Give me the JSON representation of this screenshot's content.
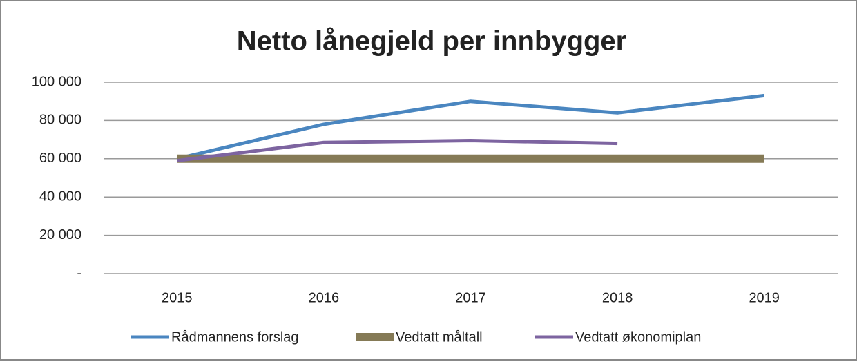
{
  "chart_data": {
    "type": "line",
    "title": "Netto lånegjeld per innbygger",
    "categories": [
      "2015",
      "2016",
      "2017",
      "2018",
      "2019"
    ],
    "series": [
      {
        "name": "Rådmannens forslag",
        "color": "#4a86c0",
        "values": [
          60000,
          78000,
          90000,
          84000,
          93000
        ]
      },
      {
        "name": "Vedtatt måltall",
        "color": "#857a56",
        "values": [
          60000,
          60000,
          60000,
          60000,
          60000
        ]
      },
      {
        "name": "Vedtatt økonomiplan",
        "color": "#7d64a0",
        "values": [
          59000,
          68500,
          69500,
          68000,
          null
        ]
      }
    ],
    "ylim": [
      0,
      100000
    ],
    "yticks": [
      {
        "value": 0,
        "label": "-"
      },
      {
        "value": 20000,
        "label": "20 000"
      },
      {
        "value": 40000,
        "label": "40 000"
      },
      {
        "value": 60000,
        "label": "60 000"
      },
      {
        "value": 80000,
        "label": "80 000"
      },
      {
        "value": 100000,
        "label": "100 000"
      }
    ],
    "grid": true,
    "legend": "bottom"
  }
}
